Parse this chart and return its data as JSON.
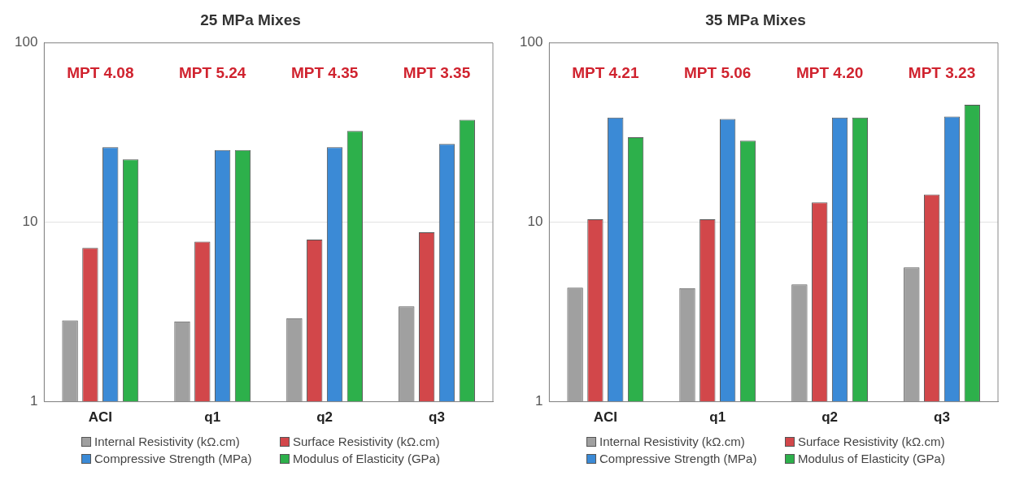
{
  "chart_data": [
    {
      "type": "bar",
      "title": "25 MPa Mixes",
      "categories": [
        "ACI",
        "q1",
        "q2",
        "q3"
      ],
      "log": true,
      "ylim": [
        1,
        100
      ],
      "yticks": [
        1,
        10,
        100
      ],
      "grid": "y",
      "legend": "bottom",
      "series": [
        {
          "name": "Internal Resistivity (kΩ.cm)",
          "color": "#a0a0a0",
          "values": [
            2.84,
            2.8,
            2.92,
            3.4
          ]
        },
        {
          "name": "Surface Resistivity (kΩ.cm)",
          "color": "#d2474a",
          "values": [
            7.2,
            7.8,
            8.0,
            8.8
          ]
        },
        {
          "name": "Compressive Strength (MPa)",
          "color": "#3b8ad6",
          "values": [
            26.2,
            25.3,
            26.2,
            27.3
          ]
        },
        {
          "name": "Modulus of Elasticity (GPa)",
          "color": "#2db04b",
          "values": [
            22.4,
            25.3,
            32.3,
            37.3
          ]
        }
      ],
      "annotations": [
        "MPT 4.08",
        "MPT 5.24",
        "MPT 4.35",
        "MPT 3.35"
      ]
    },
    {
      "type": "bar",
      "title": "35 MPa Mixes",
      "categories": [
        "ACI",
        "q1",
        "q2",
        "q3"
      ],
      "log": true,
      "ylim": [
        1,
        100
      ],
      "yticks": [
        1,
        10,
        100
      ],
      "grid": "y",
      "legend": "bottom",
      "series": [
        {
          "name": "Internal Resistivity (kΩ.cm)",
          "color": "#a0a0a0",
          "values": [
            4.32,
            4.3,
            4.5,
            5.6
          ]
        },
        {
          "name": "Surface Resistivity (kΩ.cm)",
          "color": "#d2474a",
          "values": [
            10.4,
            10.4,
            12.9,
            14.3
          ]
        },
        {
          "name": "Compressive Strength (MPa)",
          "color": "#3b8ad6",
          "values": [
            38.3,
            37.7,
            38.3,
            38.9
          ]
        },
        {
          "name": "Modulus of Elasticity (GPa)",
          "color": "#2db04b",
          "values": [
            29.8,
            28.5,
            38.3,
            45.2
          ]
        }
      ],
      "annotations": [
        "MPT 4.21",
        "MPT 5.06",
        "MPT 4.20",
        "MPT 3.23"
      ]
    }
  ]
}
